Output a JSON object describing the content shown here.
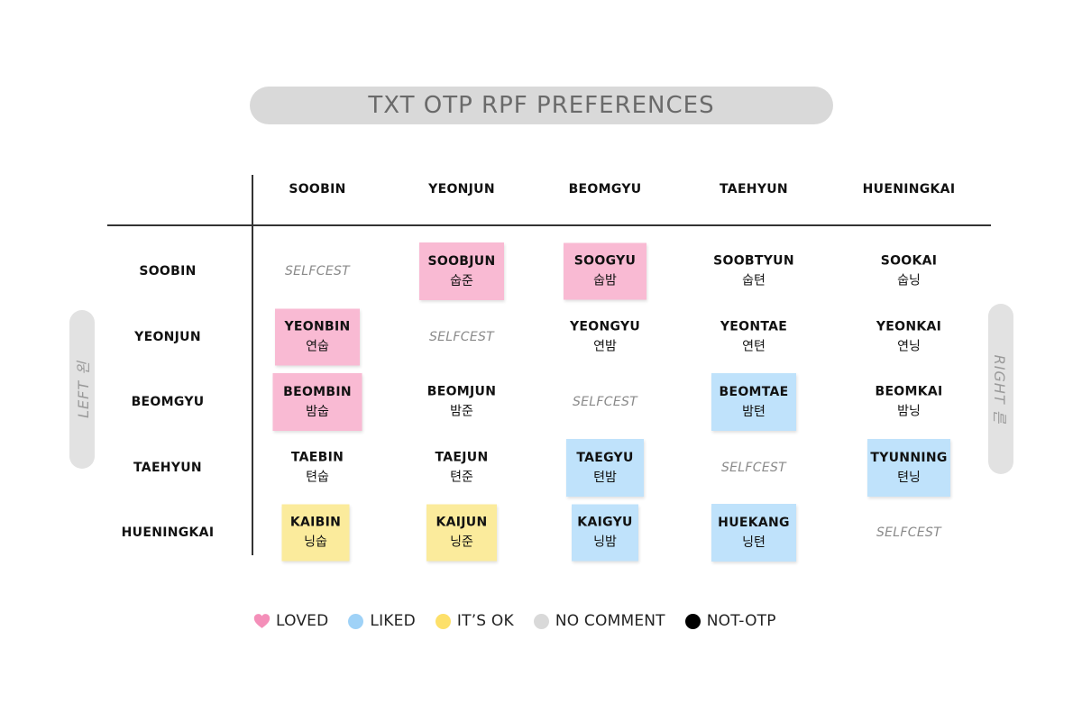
{
  "title": "TXT OTP RPF PREFERENCES",
  "left_axis_label": "LEFT 왼",
  "right_axis_label": "RIGHT 른",
  "colors": {
    "loved": "#f9bad3",
    "liked": "#bfe2fb",
    "ok": "#fbeb9c",
    "no_comment": "#d9d9d9",
    "not_otp": "#000000",
    "loved_icon": "#f48fb9",
    "liked_icon": "#9fd2f7",
    "ok_icon": "#fde06a"
  },
  "legend": [
    {
      "key": "loved",
      "label": "LOVED",
      "icon": "heart-icon"
    },
    {
      "key": "liked",
      "label": "LIKED",
      "icon": "circle-icon"
    },
    {
      "key": "ok",
      "label": "IT’S OK",
      "icon": "circle-icon"
    },
    {
      "key": "no_comment",
      "label": "NO COMMENT",
      "icon": "circle-icon"
    },
    {
      "key": "not_otp",
      "label": "NOT-OTP",
      "icon": "circle-icon"
    }
  ],
  "chart_data": {
    "type": "table",
    "columns": [
      "SOOBIN",
      "YEONJUN",
      "BEOMGYU",
      "TAEHYUN",
      "HUENINGKAI"
    ],
    "rows": [
      "SOOBIN",
      "YEONJUN",
      "BEOMGYU",
      "TAEHYUN",
      "HUENINGKAI"
    ],
    "cells": [
      [
        {
          "name": "SELFCEST",
          "korean": "",
          "category": "self"
        },
        {
          "name": "SOOBJUN",
          "korean": "숩준",
          "category": "loved"
        },
        {
          "name": "SOOGYU",
          "korean": "숩밤",
          "category": "loved"
        },
        {
          "name": "SOOBTYUN",
          "korean": "숩텬",
          "category": "not_otp"
        },
        {
          "name": "SOOKAI",
          "korean": "숩닝",
          "category": "not_otp"
        }
      ],
      [
        {
          "name": "YEONBIN",
          "korean": "연숩",
          "category": "loved"
        },
        {
          "name": "SELFCEST",
          "korean": "",
          "category": "self"
        },
        {
          "name": "YEONGYU",
          "korean": "연밤",
          "category": "not_otp"
        },
        {
          "name": "YEONTAE",
          "korean": "연텬",
          "category": "not_otp"
        },
        {
          "name": "YEONKAI",
          "korean": "연닝",
          "category": "not_otp"
        }
      ],
      [
        {
          "name": "BEOMBIN",
          "korean": "밤숩",
          "category": "loved"
        },
        {
          "name": "BEOMJUN",
          "korean": "밤준",
          "category": "not_otp"
        },
        {
          "name": "SELFCEST",
          "korean": "",
          "category": "self"
        },
        {
          "name": "BEOMTAE",
          "korean": "밤텬",
          "category": "liked"
        },
        {
          "name": "BEOMKAI",
          "korean": "밤닝",
          "category": "not_otp"
        }
      ],
      [
        {
          "name": "TAEBIN",
          "korean": "텬숩",
          "category": "not_otp"
        },
        {
          "name": "TAEJUN",
          "korean": "텬준",
          "category": "not_otp"
        },
        {
          "name": "TAEGYU",
          "korean": "텬밤",
          "category": "liked"
        },
        {
          "name": "SELFCEST",
          "korean": "",
          "category": "self"
        },
        {
          "name": "TYUNNING",
          "korean": "텬닝",
          "category": "liked"
        }
      ],
      [
        {
          "name": "KAIBIN",
          "korean": "닝숩",
          "category": "ok"
        },
        {
          "name": "KAIJUN",
          "korean": "닝준",
          "category": "ok"
        },
        {
          "name": "KAIGYU",
          "korean": "닝밤",
          "category": "liked"
        },
        {
          "name": "HUEKANG",
          "korean": "닝텬",
          "category": "liked"
        },
        {
          "name": "SELFCEST",
          "korean": "",
          "category": "self"
        }
      ]
    ]
  }
}
